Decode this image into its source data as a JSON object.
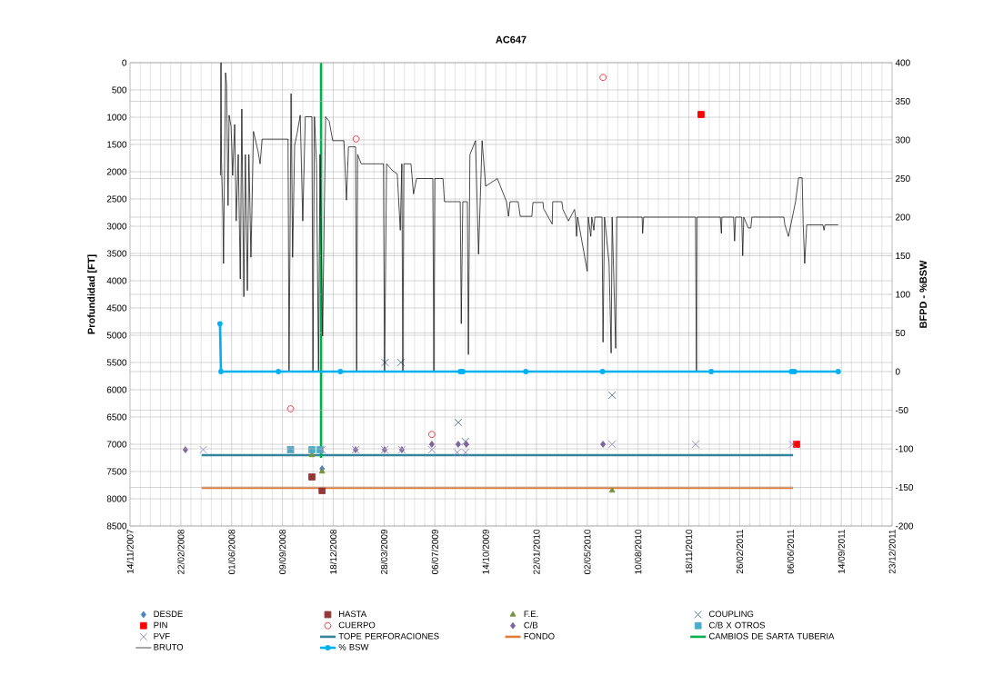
{
  "chart_data": {
    "type": "line",
    "title": "AC647",
    "ylabel": "Profundidad [FT]",
    "y2label": "BFPD - %BSW",
    "xlim": [
      "2007-11-14",
      "2011-12-23"
    ],
    "xticks": [
      {
        "value": "2007-11-14",
        "label": "14/11/2007"
      },
      {
        "value": "2008-02-22",
        "label": "22/02/2008"
      },
      {
        "value": "2008-06-01",
        "label": "01/06/2008"
      },
      {
        "value": "2008-09-09",
        "label": "09/09/2008"
      },
      {
        "value": "2008-12-18",
        "label": "18/12/2008"
      },
      {
        "value": "2009-03-28",
        "label": "28/03/2009"
      },
      {
        "value": "2009-07-06",
        "label": "06/07/2009"
      },
      {
        "value": "2009-10-14",
        "label": "14/10/2009"
      },
      {
        "value": "2010-01-22",
        "label": "22/01/2010"
      },
      {
        "value": "2010-05-02",
        "label": "02/05/2010"
      },
      {
        "value": "2010-08-10",
        "label": "10/08/2010"
      },
      {
        "value": "2010-11-18",
        "label": "18/11/2010"
      },
      {
        "value": "2011-02-26",
        "label": "26/02/2011"
      },
      {
        "value": "2011-06-06",
        "label": "06/06/2011"
      },
      {
        "value": "2011-09-14",
        "label": "14/09/2011"
      },
      {
        "value": "2011-12-23",
        "label": "23/12/2011"
      }
    ],
    "ylim": [
      8500,
      0
    ],
    "yticks": [
      0,
      500,
      1000,
      1500,
      2000,
      2500,
      3000,
      3500,
      4000,
      4500,
      5000,
      5500,
      6000,
      6500,
      7000,
      7500,
      8000,
      8500
    ],
    "y2lim": [
      -200,
      400
    ],
    "y2ticks": [
      -200,
      -150,
      -100,
      -50,
      0,
      50,
      100,
      150,
      200,
      250,
      300,
      350,
      400
    ],
    "grid": true,
    "legend": "bottom",
    "series": [
      {
        "name": "DESDE",
        "type": "scatter",
        "marker": "diamond",
        "color": "#4f81bd",
        "x": [
          "2008-11-26"
        ],
        "values": [
          7450
        ]
      },
      {
        "name": "HASTA",
        "type": "scatter",
        "marker": "square",
        "color": "#953735",
        "x": [
          "2008-11-06",
          "2008-11-26"
        ],
        "values": [
          7600,
          7850
        ]
      },
      {
        "name": "F.E.",
        "type": "scatter",
        "marker": "triangle",
        "color": "#77933c",
        "x": [
          "2008-11-06",
          "2008-11-26",
          "2010-06-20"
        ],
        "values": [
          7200,
          7500,
          7850
        ]
      },
      {
        "name": "COUPLING",
        "type": "scatter",
        "marker": "cross",
        "color": "#4a6f8f",
        "x": [
          "2009-03-30",
          "2009-04-30",
          "2009-08-21",
          "2009-09-04",
          "2010-06-20"
        ],
        "values": [
          5500,
          5500,
          6600,
          6950,
          6100
        ]
      },
      {
        "name": "PIN",
        "type": "scatter",
        "marker": "square",
        "color": "#ff0000",
        "x": [
          "2010-12-12",
          "2011-06-18"
        ],
        "values": [
          950,
          7000
        ]
      },
      {
        "name": "CUERPO",
        "type": "scatter",
        "marker": "circle",
        "color": "#e8262a",
        "x": [
          "2008-09-25",
          "2009-02-01",
          "2009-06-30",
          "2010-06-02"
        ],
        "values": [
          6350,
          1400,
          6820,
          270
        ]
      },
      {
        "name": "C/B",
        "type": "scatter",
        "marker": "diamond",
        "color": "#8064a2",
        "x": [
          "2008-03-02",
          "2009-01-31",
          "2009-03-29",
          "2009-05-02",
          "2009-06-30",
          "2009-08-21",
          "2009-09-06",
          "2010-06-02"
        ],
        "values": [
          7100,
          7100,
          7100,
          7100,
          7000,
          7000,
          7000,
          7000
        ]
      },
      {
        "name": "C/B X OTROS",
        "type": "scatter",
        "marker": "square",
        "color": "#4bacc6",
        "x": [
          "2008-09-25",
          "2008-11-06",
          "2008-11-22"
        ],
        "values": [
          7100,
          7100,
          7100
        ]
      },
      {
        "name": "PVF",
        "type": "scatter",
        "marker": "cross",
        "color": "#9384bd",
        "x": [
          "2008-04-06",
          "2008-09-25",
          "2008-11-26",
          "2009-01-31",
          "2009-03-29",
          "2009-05-02",
          "2009-06-30",
          "2009-08-19",
          "2009-09-04",
          "2010-06-20",
          "2010-12-01",
          "2011-06-10"
        ],
        "values": [
          7100,
          7100,
          7100,
          7100,
          7100,
          7100,
          7100,
          7150,
          7150,
          7000,
          7000,
          7000
        ]
      },
      {
        "name": "TOPE PERFORACIONES",
        "marker": "none",
        "color": "#31859c",
        "x": [
          "2008-04-03",
          "2011-06-11"
        ],
        "values": [
          7200,
          7200
        ]
      },
      {
        "name": "FONDO",
        "marker": "none",
        "color": "#e07c3a",
        "x": [
          "2008-04-03",
          "2011-06-11"
        ],
        "values": [
          7800,
          7800
        ]
      },
      {
        "name": "CAMBIOS DE SARTA TUBERIA",
        "marker": "none",
        "color": "#00b050",
        "x": [
          "2008-11-24",
          "2008-11-24",
          "2008-11-24",
          "2008-11-24",
          "2008-11-24"
        ],
        "values": [
          0,
          200,
          400,
          3250,
          7250
        ]
      },
      {
        "name": "BRUTO",
        "marker": "none",
        "axis": "y2",
        "color": "#000000",
        "x": [
          "2008-05-10",
          "2008-05-11",
          "2008-05-12",
          "2008-05-15",
          "2008-05-16",
          "2008-05-20",
          "2008-05-22",
          "2008-05-25",
          "2008-05-27",
          "2008-05-31",
          "2008-06-03",
          "2008-06-07",
          "2008-06-10",
          "2008-06-14",
          "2008-06-18",
          "2008-06-21",
          "2008-06-25",
          "2008-06-28",
          "2008-07-02",
          "2008-07-05",
          "2008-07-09",
          "2008-07-14",
          "2008-07-23",
          "2008-07-27",
          "2008-07-31",
          "2008-09-20",
          "2008-09-22",
          "2008-09-26",
          "2008-09-29",
          "2008-10-03",
          "2008-10-08",
          "2008-10-14",
          "2008-10-19",
          "2008-10-24",
          "2008-11-06",
          "2008-11-08",
          "2008-11-11",
          "2008-11-15",
          "2008-11-19",
          "2008-11-22",
          "2008-11-27",
          "2008-12-03",
          "2008-12-10",
          "2008-12-17",
          "2009-01-08",
          "2009-01-13",
          "2009-01-17",
          "2009-01-31",
          "2009-02-02",
          "2009-02-04",
          "2009-02-11",
          "2009-03-27",
          "2009-03-29",
          "2009-04-02",
          "2009-04-14",
          "2009-04-23",
          "2009-04-29",
          "2009-05-02",
          "2009-05-04",
          "2009-05-06",
          "2009-05-20",
          "2009-05-25",
          "2009-05-31",
          "2009-07-02",
          "2009-07-04",
          "2009-07-06",
          "2009-07-22",
          "2009-07-25",
          "2009-08-25",
          "2009-08-27",
          "2009-08-30",
          "2009-09-08",
          "2009-09-10",
          "2009-09-13",
          "2009-09-24",
          "2009-09-30",
          "2009-10-07",
          "2009-10-14",
          "2009-11-06",
          "2009-11-24",
          "2009-11-28",
          "2009-12-01",
          "2009-12-17",
          "2009-12-21",
          "2010-01-13",
          "2010-01-15",
          "2010-02-04",
          "2010-02-05",
          "2010-02-22",
          "2010-02-23",
          "2010-03-13",
          "2010-03-15",
          "2010-03-26",
          "2010-04-07",
          "2010-04-09",
          "2010-04-11",
          "2010-04-13",
          "2010-05-02",
          "2010-05-04",
          "2010-05-09",
          "2010-05-11",
          "2010-05-15",
          "2010-05-17",
          "2010-05-31",
          "2010-06-02",
          "2010-06-05",
          "2010-06-14",
          "2010-06-18",
          "2010-06-20",
          "2010-06-27",
          "2010-06-29",
          "2010-08-18",
          "2010-08-19",
          "2010-08-21",
          "2010-12-01",
          "2010-12-03",
          "2010-12-04",
          "2011-01-19",
          "2011-01-21",
          "2011-01-22",
          "2011-02-14",
          "2011-02-16",
          "2011-02-18",
          "2011-03-02",
          "2011-03-04",
          "2011-03-06",
          "2011-03-15",
          "2011-03-20",
          "2011-03-22",
          "2011-05-24",
          "2011-05-26",
          "2011-06-02",
          "2011-06-16",
          "2011-06-22",
          "2011-06-29",
          "2011-07-01",
          "2011-07-04",
          "2011-07-08",
          "2011-08-09",
          "2011-08-11",
          "2011-08-13",
          "2011-09-08"
        ],
        "values": [
          254,
          400,
          273,
          199,
          140,
          387,
          371,
          215,
          332,
          317,
          254,
          320,
          195,
          281,
          120,
          340,
          97,
          281,
          105,
          281,
          148,
          311,
          285,
          269,
          301,
          301,
          0,
          360,
          148,
          293,
          309,
          332,
          195,
          330,
          330,
          0,
          330,
          269,
          0,
          281,
          46,
          330,
          324,
          299,
          299,
          222,
          291,
          291,
          0,
          281,
          269,
          269,
          0,
          269,
          260,
          256,
          183,
          269,
          0,
          269,
          269,
          230,
          250,
          250,
          0,
          250,
          250,
          220,
          220,
          62,
          220,
          220,
          22,
          281,
          299,
          152,
          299,
          240,
          250,
          220,
          201,
          220,
          220,
          201,
          201,
          219,
          219,
          211,
          191,
          220,
          220,
          210,
          195,
          210,
          200,
          175,
          200,
          130,
          200,
          175,
          200,
          183,
          200,
          200,
          38,
          200,
          140,
          24,
          200,
          30,
          200,
          200,
          179,
          200,
          200,
          0,
          200,
          200,
          179,
          200,
          200,
          169,
          200,
          200,
          150,
          200,
          186,
          186,
          200,
          200,
          190,
          175,
          220,
          251,
          251,
          191,
          140,
          190,
          190,
          183,
          190,
          190
        ]
      },
      {
        "name": "% BSW",
        "marker": "circle",
        "axis": "y2",
        "color": "#00b0f0",
        "x": [
          "2008-05-09",
          "2008-05-11",
          "2008-09-01",
          "2009-01-01",
          "2009-08-25",
          "2009-08-27",
          "2009-08-30",
          "2010-01-01",
          "2010-06-01",
          "2011-01-01",
          "2011-06-08",
          "2011-06-11",
          "2011-06-14",
          "2011-09-08"
        ],
        "values": [
          62,
          0,
          0,
          0,
          0,
          null,
          0,
          0,
          0,
          0,
          0,
          null,
          0,
          0
        ]
      }
    ]
  }
}
